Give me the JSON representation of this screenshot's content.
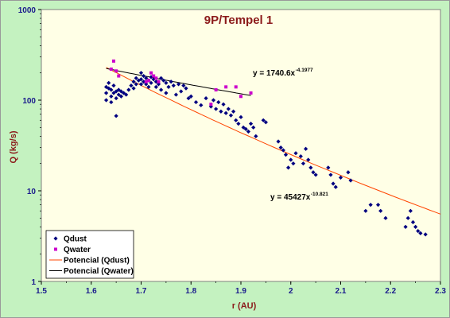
{
  "chart_data": {
    "type": "scatter",
    "title": "9P/Tempel 1",
    "xlabel": "r (AU)",
    "ylabel": "Q (kg/s)",
    "xlim": [
      1.5,
      2.3
    ],
    "ylim": [
      1,
      1000
    ],
    "yscale": "log",
    "xticks": [
      "1.5",
      "1.6",
      "1.7",
      "1.8",
      "1.9",
      "2",
      "2.1",
      "2.2",
      "2.3"
    ],
    "yticks": [
      "1",
      "10",
      "100",
      "1000"
    ],
    "grid": false,
    "legend_position": "bottom-left",
    "legend": [
      "Qdust",
      "Qwater",
      "Potencial (Qdust)",
      "Potencial (Qwater)"
    ],
    "series": [
      {
        "name": "Qdust",
        "color": "#000080",
        "marker": "diamond",
        "points": [
          [
            1.63,
            140
          ],
          [
            1.63,
            120
          ],
          [
            1.63,
            100
          ],
          [
            1.635,
            155
          ],
          [
            1.635,
            135
          ],
          [
            1.64,
            130
          ],
          [
            1.64,
            110
          ],
          [
            1.64,
            95
          ],
          [
            1.645,
            145
          ],
          [
            1.645,
            120
          ],
          [
            1.65,
            125
          ],
          [
            1.65,
            105
          ],
          [
            1.65,
            67
          ],
          [
            1.655,
            130
          ],
          [
            1.655,
            115
          ],
          [
            1.66,
            125
          ],
          [
            1.66,
            110
          ],
          [
            1.665,
            120
          ],
          [
            1.67,
            115
          ],
          [
            1.675,
            130
          ],
          [
            1.68,
            145
          ],
          [
            1.685,
            160
          ],
          [
            1.685,
            135
          ],
          [
            1.69,
            175
          ],
          [
            1.69,
            150
          ],
          [
            1.695,
            165
          ],
          [
            1.7,
            200
          ],
          [
            1.7,
            170
          ],
          [
            1.7,
            150
          ],
          [
            1.705,
            185
          ],
          [
            1.705,
            160
          ],
          [
            1.71,
            175
          ],
          [
            1.71,
            150
          ],
          [
            1.715,
            165
          ],
          [
            1.715,
            140
          ],
          [
            1.72,
            180
          ],
          [
            1.72,
            155
          ],
          [
            1.725,
            170
          ],
          [
            1.73,
            160
          ],
          [
            1.73,
            140
          ],
          [
            1.735,
            150
          ],
          [
            1.74,
            175
          ],
          [
            1.74,
            130
          ],
          [
            1.745,
            165
          ],
          [
            1.75,
            155
          ],
          [
            1.75,
            120
          ],
          [
            1.755,
            140
          ],
          [
            1.76,
            160
          ],
          [
            1.765,
            145
          ],
          [
            1.77,
            115
          ],
          [
            1.775,
            150
          ],
          [
            1.78,
            125
          ],
          [
            1.785,
            145
          ],
          [
            1.79,
            135
          ],
          [
            1.795,
            105
          ],
          [
            1.8,
            110
          ],
          [
            1.81,
            95
          ],
          [
            1.82,
            88
          ],
          [
            1.83,
            105
          ],
          [
            1.84,
            85
          ],
          [
            1.845,
            100
          ],
          [
            1.85,
            80
          ],
          [
            1.855,
            95
          ],
          [
            1.86,
            75
          ],
          [
            1.865,
            90
          ],
          [
            1.87,
            72
          ],
          [
            1.875,
            80
          ],
          [
            1.88,
            68
          ],
          [
            1.885,
            75
          ],
          [
            1.89,
            60
          ],
          [
            1.895,
            55
          ],
          [
            1.9,
            65
          ],
          [
            1.905,
            50
          ],
          [
            1.91,
            48
          ],
          [
            1.915,
            45
          ],
          [
            1.92,
            55
          ],
          [
            1.925,
            50
          ],
          [
            1.93,
            40
          ],
          [
            1.945,
            60
          ],
          [
            1.95,
            57
          ],
          [
            1.975,
            35
          ],
          [
            1.98,
            30
          ],
          [
            1.985,
            28
          ],
          [
            1.99,
            25
          ],
          [
            1.995,
            18
          ],
          [
            2.0,
            22
          ],
          [
            2.005,
            20
          ],
          [
            2.01,
            26
          ],
          [
            2.02,
            24
          ],
          [
            2.025,
            20
          ],
          [
            2.03,
            29
          ],
          [
            2.035,
            22
          ],
          [
            2.04,
            18
          ],
          [
            2.045,
            16
          ],
          [
            2.05,
            15
          ],
          [
            2.075,
            18
          ],
          [
            2.08,
            15
          ],
          [
            2.085,
            12
          ],
          [
            2.09,
            11
          ],
          [
            2.1,
            14
          ],
          [
            2.115,
            16
          ],
          [
            2.12,
            13
          ],
          [
            2.15,
            6
          ],
          [
            2.16,
            7
          ],
          [
            2.175,
            7
          ],
          [
            2.18,
            6
          ],
          [
            2.19,
            5
          ],
          [
            2.23,
            4
          ],
          [
            2.235,
            5
          ],
          [
            2.24,
            6
          ],
          [
            2.245,
            4.5
          ],
          [
            2.25,
            4
          ],
          [
            2.255,
            3.6
          ],
          [
            2.26,
            3.4
          ],
          [
            2.27,
            3.3
          ]
        ]
      },
      {
        "name": "Qwater",
        "color": "#cc00cc",
        "marker": "square",
        "points": [
          [
            1.64,
            220
          ],
          [
            1.645,
            270
          ],
          [
            1.65,
            210
          ],
          [
            1.655,
            185
          ],
          [
            1.71,
            160
          ],
          [
            1.715,
            165
          ],
          [
            1.72,
            200
          ],
          [
            1.725,
            185
          ],
          [
            1.73,
            175
          ],
          [
            1.735,
            160
          ],
          [
            1.84,
            90
          ],
          [
            1.85,
            130
          ],
          [
            1.87,
            140
          ],
          [
            1.89,
            140
          ],
          [
            1.9,
            110
          ],
          [
            1.92,
            120
          ]
        ]
      }
    ],
    "fits": [
      {
        "name": "Potencial (Qdust)",
        "color": "#ff4500",
        "A": 45427,
        "b": 10.821,
        "x_range": [
          1.63,
          2.3
        ],
        "label_prefix": "y = 45427x",
        "label_exponent": "-10.821"
      },
      {
        "name": "Potencial (Qwater)",
        "color": "#000000",
        "A": 1740.6,
        "b": 4.1977,
        "x_range": [
          1.63,
          1.92
        ],
        "label_prefix": "y = 1740.6x",
        "label_exponent": "-4.1977"
      }
    ]
  }
}
